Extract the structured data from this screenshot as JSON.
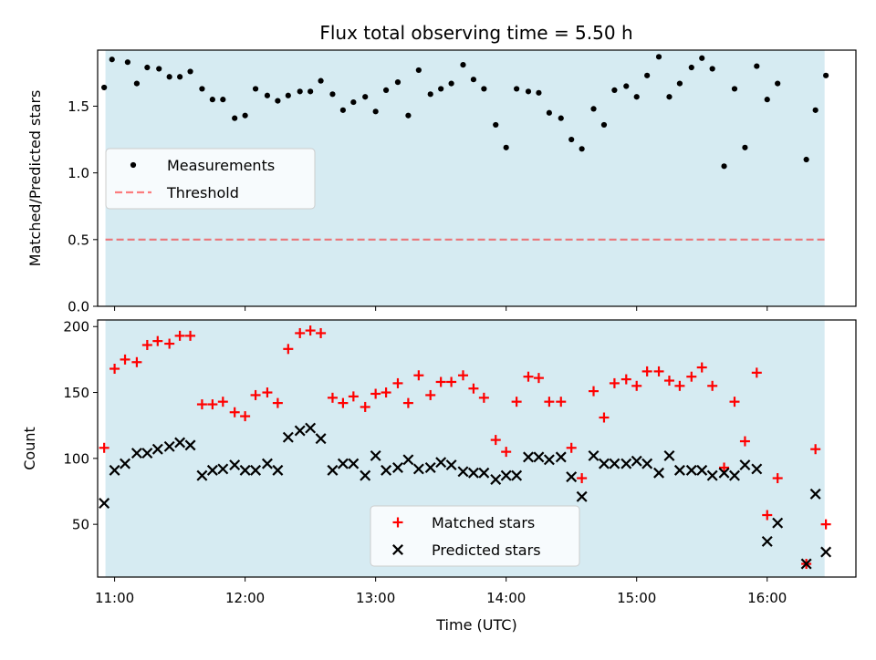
{
  "title": "Flux total observing time = 5.50 h",
  "colors": {
    "span": "#add8e6",
    "measurement": "#000000",
    "threshold": "#ff0000",
    "matched": "#ff0000",
    "predicted": "#000000"
  },
  "chart_data": [
    {
      "type": "scatter",
      "ylabel": "Matched/Predicted stars",
      "xlim": [
        10.87,
        16.68
      ],
      "ylim": [
        0,
        1.92
      ],
      "yticks": [
        0,
        0.5,
        1.0,
        1.5
      ],
      "ytick_labels": [
        "0.0",
        "0.5",
        "1.0",
        "1.5"
      ],
      "observing_span": [
        10.93,
        16.44
      ],
      "threshold": 0.5,
      "legend_position": "center-left",
      "series": [
        {
          "name": "Measurements",
          "marker": "dot",
          "x": [
            10.92,
            10.98,
            11.1,
            11.17,
            11.25,
            11.34,
            11.42,
            11.5,
            11.58,
            11.67,
            11.75,
            11.83,
            11.92,
            12.0,
            12.08,
            12.17,
            12.25,
            12.33,
            12.42,
            12.5,
            12.58,
            12.67,
            12.75,
            12.83,
            12.92,
            13.0,
            13.08,
            13.17,
            13.25,
            13.33,
            13.42,
            13.5,
            13.58,
            13.67,
            13.75,
            13.83,
            13.92,
            14.0,
            14.08,
            14.17,
            14.25,
            14.33,
            14.42,
            14.5,
            14.58,
            14.67,
            14.75,
            14.83,
            14.92,
            15.0,
            15.08,
            15.17,
            15.25,
            15.33,
            15.42,
            15.5,
            15.58,
            15.67,
            15.75,
            15.83,
            15.92,
            16.0,
            16.08,
            16.3,
            16.37,
            16.45
          ],
          "y": [
            1.64,
            1.85,
            1.83,
            1.67,
            1.79,
            1.78,
            1.72,
            1.72,
            1.76,
            1.63,
            1.55,
            1.55,
            1.41,
            1.43,
            1.63,
            1.58,
            1.54,
            1.58,
            1.61,
            1.61,
            1.69,
            1.59,
            1.47,
            1.53,
            1.57,
            1.46,
            1.62,
            1.68,
            1.43,
            1.77,
            1.59,
            1.63,
            1.67,
            1.81,
            1.7,
            1.63,
            1.36,
            1.19,
            1.63,
            1.61,
            1.6,
            1.45,
            1.41,
            1.25,
            1.18,
            1.48,
            1.36,
            1.62,
            1.65,
            1.57,
            1.73,
            1.87,
            1.57,
            1.67,
            1.79,
            1.86,
            1.78,
            1.05,
            1.63,
            1.19,
            1.8,
            1.55,
            1.67,
            1.1,
            1.47,
            1.73
          ]
        },
        {
          "name": "Threshold",
          "marker": "dashed-line",
          "y": 0.5
        }
      ]
    },
    {
      "type": "scatter",
      "xlabel": "Time (UTC)",
      "ylabel": "Count",
      "xlim": [
        10.87,
        16.68
      ],
      "ylim": [
        10,
        205
      ],
      "xticks": [
        11,
        12,
        13,
        14,
        15,
        16
      ],
      "xtick_labels": [
        "11:00",
        "12:00",
        "13:00",
        "14:00",
        "15:00",
        "16:00"
      ],
      "yticks": [
        50,
        100,
        150,
        200
      ],
      "ytick_labels": [
        "50",
        "100",
        "150",
        "200"
      ],
      "observing_span": [
        10.93,
        16.44
      ],
      "legend_position": "lower-center",
      "series": [
        {
          "name": "Matched stars",
          "marker": "plus",
          "x": [
            10.92,
            11.0,
            11.08,
            11.17,
            11.25,
            11.33,
            11.42,
            11.5,
            11.58,
            11.67,
            11.75,
            11.83,
            11.92,
            12.0,
            12.08,
            12.17,
            12.25,
            12.33,
            12.42,
            12.5,
            12.58,
            12.67,
            12.75,
            12.83,
            12.92,
            13.0,
            13.08,
            13.17,
            13.25,
            13.33,
            13.42,
            13.5,
            13.58,
            13.67,
            13.75,
            13.83,
            13.92,
            14.0,
            14.08,
            14.17,
            14.25,
            14.33,
            14.42,
            14.5,
            14.58,
            14.67,
            14.75,
            14.83,
            14.92,
            15.0,
            15.08,
            15.17,
            15.25,
            15.33,
            15.42,
            15.5,
            15.58,
            15.67,
            15.75,
            15.83,
            15.92,
            16.0,
            16.08,
            16.3,
            16.37,
            16.45
          ],
          "y": [
            108,
            168,
            175,
            173,
            186,
            189,
            187,
            193,
            193,
            141,
            141,
            143,
            135,
            132,
            148,
            150,
            142,
            183,
            195,
            197,
            195,
            146,
            142,
            147,
            139,
            149,
            150,
            157,
            142,
            163,
            148,
            158,
            158,
            163,
            153,
            146,
            114,
            105,
            143,
            162,
            161,
            143,
            143,
            108,
            85,
            151,
            131,
            157,
            160,
            155,
            166,
            166,
            159,
            155,
            162,
            169,
            155,
            93,
            143,
            113,
            165,
            57,
            85,
            20,
            107,
            50
          ]
        },
        {
          "name": "Predicted stars",
          "marker": "x",
          "x": [
            10.92,
            11.0,
            11.08,
            11.17,
            11.25,
            11.33,
            11.42,
            11.5,
            11.58,
            11.67,
            11.75,
            11.83,
            11.92,
            12.0,
            12.08,
            12.17,
            12.25,
            12.33,
            12.42,
            12.5,
            12.58,
            12.67,
            12.75,
            12.83,
            12.92,
            13.0,
            13.08,
            13.17,
            13.25,
            13.33,
            13.42,
            13.5,
            13.58,
            13.67,
            13.75,
            13.83,
            13.92,
            14.0,
            14.08,
            14.17,
            14.25,
            14.33,
            14.42,
            14.5,
            14.58,
            14.67,
            14.75,
            14.83,
            14.92,
            15.0,
            15.08,
            15.17,
            15.25,
            15.33,
            15.42,
            15.5,
            15.58,
            15.67,
            15.75,
            15.83,
            15.92,
            16.0,
            16.08,
            16.3,
            16.37,
            16.45
          ],
          "y": [
            66,
            91,
            96,
            104,
            104,
            107,
            109,
            112,
            110,
            87,
            91,
            92,
            95,
            91,
            91,
            96,
            91,
            116,
            121,
            123,
            115,
            91,
            96,
            96,
            87,
            102,
            91,
            93,
            99,
            92,
            93,
            97,
            95,
            90,
            89,
            89,
            84,
            87,
            87,
            101,
            101,
            99,
            101,
            86,
            71,
            102,
            96,
            96,
            96,
            98,
            96,
            89,
            102,
            91,
            91,
            91,
            87,
            89,
            87,
            95,
            92,
            37,
            51,
            20,
            73,
            29
          ]
        }
      ]
    }
  ]
}
